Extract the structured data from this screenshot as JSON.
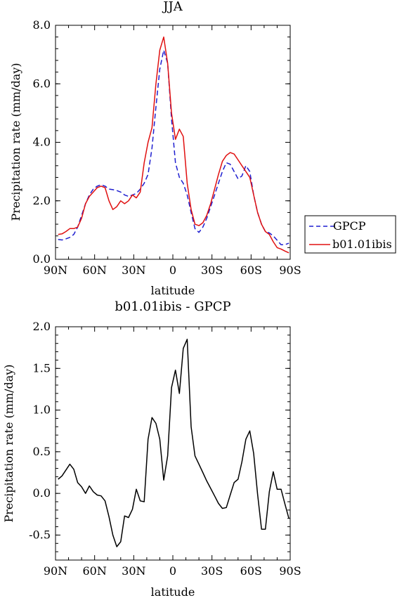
{
  "colors": {
    "gpcp": "#1f1fd0",
    "model": "#e01010",
    "diff": "#000000"
  },
  "chart_data": [
    {
      "type": "line",
      "title": "JJA",
      "xlabel": "latitude",
      "ylabel": "Precipitation rate (mm/day)",
      "xlim": [
        90,
        -90
      ],
      "ylim": [
        0,
        8
      ],
      "x_ticks": [
        90,
        60,
        30,
        0,
        -30,
        -60,
        -90
      ],
      "x_tick_labels": [
        "90N",
        "60N",
        "30N",
        "0",
        "30S",
        "60S",
        "90S"
      ],
      "y_ticks": [
        0,
        2,
        4,
        6,
        8
      ],
      "y_tick_labels": [
        "0.0",
        "2.0",
        "4.0",
        "6.0",
        "8.0"
      ],
      "legend": "outside-right",
      "series": [
        {
          "name": "GPCP",
          "style": "dashed",
          "x": [
            88,
            85,
            82,
            79,
            76,
            73,
            70,
            67,
            64,
            61,
            58,
            55,
            52,
            49,
            46,
            43,
            40,
            37,
            34,
            31,
            28,
            25,
            22,
            19,
            16,
            13,
            10,
            7,
            4,
            1,
            -2,
            -5,
            -8,
            -11,
            -14,
            -17,
            -20,
            -23,
            -26,
            -29,
            -32,
            -35,
            -38,
            -41,
            -44,
            -47,
            -50,
            -53,
            -56,
            -59,
            -62,
            -65,
            -68,
            -71,
            -74,
            -77,
            -80,
            -83,
            -86,
            -89
          ],
          "values": [
            0.68,
            0.66,
            0.7,
            0.75,
            0.85,
            1.1,
            1.5,
            1.9,
            2.2,
            2.4,
            2.5,
            2.55,
            2.5,
            2.4,
            2.38,
            2.35,
            2.3,
            2.2,
            2.15,
            2.2,
            2.25,
            2.4,
            2.6,
            2.9,
            3.8,
            5.2,
            6.5,
            7.15,
            6.7,
            4.8,
            3.3,
            2.8,
            2.6,
            2.2,
            1.6,
            1.05,
            0.92,
            1.1,
            1.4,
            1.8,
            2.2,
            2.6,
            3.0,
            3.3,
            3.25,
            3.0,
            2.75,
            2.85,
            3.2,
            3.0,
            2.2,
            1.6,
            1.2,
            0.95,
            0.9,
            0.8,
            0.65,
            0.5,
            0.5,
            0.55
          ]
        },
        {
          "name": "b01.01ibis",
          "style": "solid",
          "x": [
            88,
            85,
            82,
            79,
            76,
            73,
            70,
            67,
            64,
            61,
            58,
            55,
            52,
            49,
            46,
            43,
            40,
            37,
            34,
            31,
            28,
            25,
            22,
            19,
            16,
            13,
            10,
            7,
            4,
            1,
            -2,
            -5,
            -8,
            -11,
            -14,
            -17,
            -20,
            -23,
            -26,
            -29,
            -32,
            -35,
            -38,
            -41,
            -44,
            -47,
            -50,
            -53,
            -56,
            -59,
            -62,
            -65,
            -68,
            -71,
            -74,
            -77,
            -80,
            -83,
            -86,
            -89
          ],
          "values": [
            0.85,
            0.87,
            0.95,
            1.05,
            1.05,
            1.1,
            1.4,
            1.9,
            2.15,
            2.3,
            2.45,
            2.5,
            2.45,
            2.0,
            1.7,
            1.8,
            2.0,
            1.9,
            2.0,
            2.2,
            2.1,
            2.3,
            3.3,
            4.0,
            4.5,
            6.0,
            7.15,
            7.6,
            6.7,
            5.0,
            4.1,
            4.45,
            4.2,
            2.6,
            1.7,
            1.2,
            1.15,
            1.25,
            1.5,
            1.9,
            2.4,
            2.9,
            3.35,
            3.55,
            3.65,
            3.6,
            3.4,
            3.2,
            3.0,
            2.8,
            2.2,
            1.6,
            1.2,
            0.95,
            0.85,
            0.6,
            0.4,
            0.35,
            0.28,
            0.22
          ]
        }
      ]
    },
    {
      "type": "line",
      "title": "b01.01ibis - GPCP",
      "xlabel": "latitude",
      "ylabel": "Precipitation rate (mm/day)",
      "xlim": [
        90,
        -90
      ],
      "ylim": [
        -0.8,
        2.0
      ],
      "x_ticks": [
        90,
        60,
        30,
        0,
        -30,
        -60,
        -90
      ],
      "x_tick_labels": [
        "90N",
        "60N",
        "30N",
        "0",
        "30S",
        "60S",
        "90S"
      ],
      "y_ticks": [
        2.0,
        1.5,
        1.0,
        0.5,
        0.0,
        -0.5
      ],
      "y_tick_labels": [
        "2.0",
        "1.5",
        "1.0",
        "0.5",
        "0.0",
        "-0.5"
      ],
      "series": [
        {
          "style": "solid",
          "x": [
            88,
            85,
            82,
            79,
            76,
            73,
            70,
            67,
            64,
            61,
            58,
            55,
            52,
            49,
            46,
            43,
            40,
            37,
            34,
            31,
            28,
            25,
            22,
            19,
            16,
            13,
            10,
            7,
            4,
            1,
            -2,
            -5,
            -8,
            -11,
            -14,
            -17,
            -20,
            -23,
            -26,
            -29,
            -32,
            -35,
            -38,
            -41,
            -44,
            -47,
            -50,
            -53,
            -56,
            -59,
            -62,
            -65,
            -68,
            -71,
            -74,
            -77,
            -80,
            -83,
            -86,
            -89
          ],
          "values": [
            0.17,
            0.21,
            0.28,
            0.35,
            0.29,
            0.13,
            0.08,
            0.0,
            0.09,
            0.02,
            -0.02,
            -0.03,
            -0.09,
            -0.28,
            -0.5,
            -0.64,
            -0.58,
            -0.27,
            -0.29,
            -0.19,
            0.05,
            -0.09,
            -0.1,
            0.65,
            0.91,
            0.84,
            0.65,
            0.16,
            0.45,
            1.27,
            1.48,
            1.2,
            1.74,
            1.85,
            0.8,
            0.45,
            0.35,
            0.25,
            0.15,
            0.06,
            -0.03,
            -0.12,
            -0.18,
            -0.17,
            -0.02,
            0.13,
            0.17,
            0.38,
            0.65,
            0.75,
            0.48,
            -0.01,
            -0.43,
            -0.43,
            0.02,
            0.26,
            0.05,
            0.05,
            -0.13,
            -0.3
          ]
        }
      ]
    }
  ]
}
